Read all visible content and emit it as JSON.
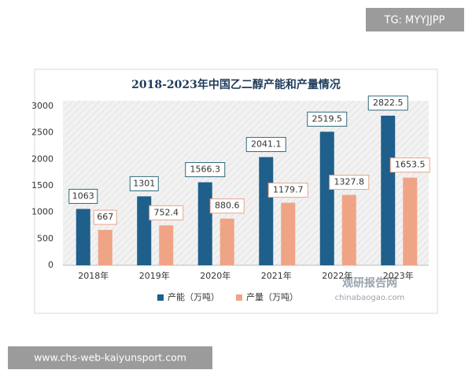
{
  "chart_data": {
    "type": "bar",
    "title": "2018-2023年中国乙二醇产能和产量情况",
    "categories": [
      "2018年",
      "2019年",
      "2020年",
      "2021年",
      "2022年",
      "2023年"
    ],
    "series": [
      {
        "name": "产能（万吨）",
        "color": "#1f5f8b",
        "values": [
          1063,
          1301,
          1566.3,
          2041.1,
          2519.5,
          2822.5
        ]
      },
      {
        "name": "产量（万吨）",
        "color": "#f0a486",
        "values": [
          667,
          752.4,
          880.6,
          1179.7,
          1327.8,
          1653.5
        ]
      }
    ],
    "ylim": [
      0,
      3000
    ],
    "yticks": [
      0,
      500,
      1000,
      1500,
      2000,
      2500,
      3000
    ],
    "legend": "bottom",
    "data_labels": true
  },
  "watermark": {
    "name": "观研报告网",
    "site": "chinabaogao.com"
  },
  "overlay": {
    "tag": "TG: MYYJJPP",
    "url": "www.chs-web-kaiyunsport.com"
  }
}
